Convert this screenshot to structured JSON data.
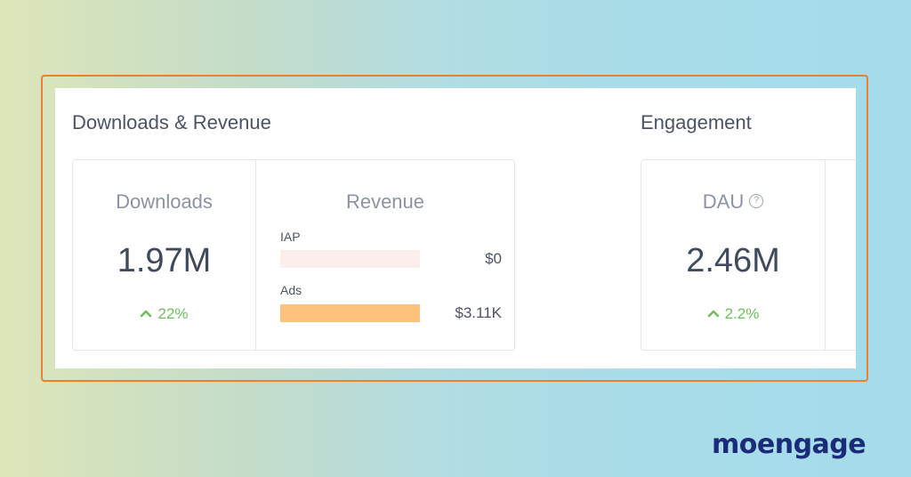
{
  "downloads_revenue": {
    "title": "Downloads & Revenue",
    "downloads": {
      "label": "Downloads",
      "value": "1.97M",
      "change": "22%",
      "change_direction": "up"
    },
    "revenue": {
      "label": "Revenue",
      "items": [
        {
          "label": "IAP",
          "value": "$0",
          "share": 0.0
        },
        {
          "label": "Ads",
          "value": "$3.11K",
          "share": 1.0
        }
      ]
    }
  },
  "engagement": {
    "title": "Engagement",
    "dau": {
      "label": "DAU",
      "value": "2.46M",
      "change": "2.2%",
      "change_direction": "up"
    }
  },
  "colors": {
    "highlight_frame": "#f07f2a",
    "positive": "#6cc05a",
    "iap_bar": "#fdeeee",
    "ads_bar": "#fec27c",
    "logo": "#1b2b7a"
  },
  "icons": {
    "change": "chevron-up-icon",
    "help": "question-circle-icon"
  },
  "logo": {
    "text": "moengage"
  }
}
